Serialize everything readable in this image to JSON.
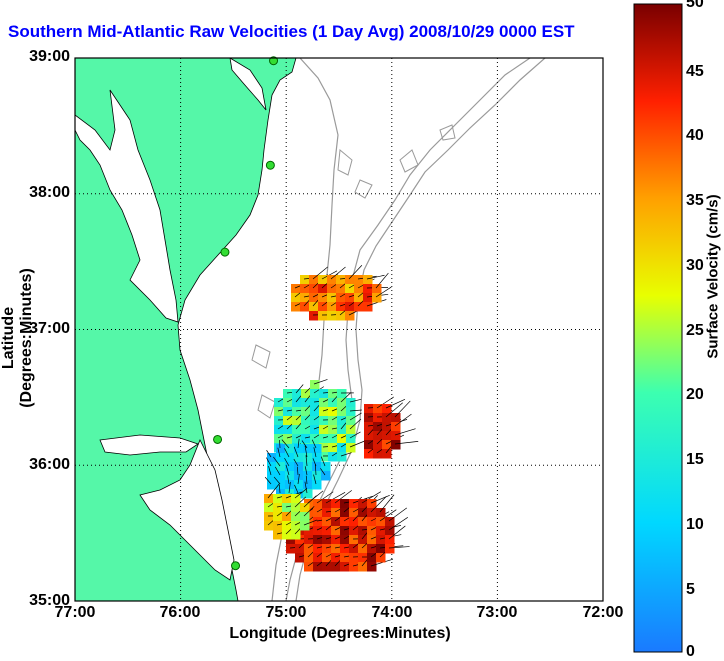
{
  "title": "Southern Mid-Atlantic Raw Velocities (1 Day Avg) 2008/10/29 0000 EST",
  "map": {
    "xlabel": "Longitude (Degrees:Minutes)",
    "ylabel": "Latitude (Degrees:Minutes)",
    "lon_ticks": [
      "77:00",
      "76:00",
      "75:00",
      "74:00",
      "73:00",
      "72:00"
    ],
    "lat_ticks": [
      "39:00",
      "38:00",
      "37:00",
      "36:00",
      "35:00"
    ],
    "lon_range": [
      -77,
      -72
    ],
    "lat_range": [
      35,
      39
    ],
    "land_color": "#55f7a8",
    "grid": "dotted"
  },
  "colorbar": {
    "label": "Surface Velocity (cm/s)",
    "ticks": [
      "50",
      "45",
      "40",
      "35",
      "30",
      "25",
      "20",
      "15",
      "10",
      "5",
      "0"
    ],
    "range": [
      0,
      50
    ],
    "colormap": "jet"
  },
  "stations": [
    {
      "lon": -75.12,
      "lat": 38.98
    },
    {
      "lon": -75.15,
      "lat": 38.21
    },
    {
      "lon": -75.58,
      "lat": 37.57
    },
    {
      "lon": -75.65,
      "lat": 36.19
    },
    {
      "lon": -75.48,
      "lat": 35.26
    }
  ]
}
